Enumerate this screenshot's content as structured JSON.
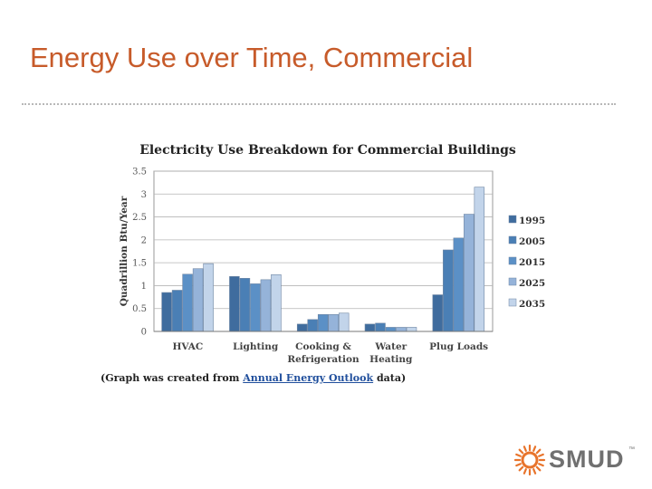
{
  "slide": {
    "title": "Energy Use over Time, Commercial"
  },
  "caption": {
    "prefix": "(Graph was created from ",
    "link": "Annual Energy Outlook",
    "suffix": " data)"
  },
  "logo": {
    "text": "SMUD",
    "trademark": "™",
    "sun_color": "#e8742c"
  },
  "chart_data": {
    "type": "bar",
    "title": "Electricity Use Breakdown for Commercial Buildings",
    "xlabel": "",
    "ylabel": "Quadrillion Btu/Year",
    "ylim": [
      0,
      3.5
    ],
    "yticks": [
      "0",
      "0.5",
      "1",
      "1.5",
      "2",
      "2.5",
      "3",
      "3.5"
    ],
    "grid": true,
    "legend_position": "right",
    "categories": [
      "HVAC",
      "Lighting",
      "Cooking & Refrigeration",
      "Water Heating",
      "Plug Loads"
    ],
    "category_lines": [
      [
        "HVAC"
      ],
      [
        "Lighting"
      ],
      [
        "Cooking &",
        "Refrigeration"
      ],
      [
        "Water",
        "Heating"
      ],
      [
        "Plug Loads"
      ]
    ],
    "series": [
      {
        "name": "1995",
        "color": "#3f6c9e",
        "values": [
          0.85,
          1.2,
          0.16,
          0.16,
          0.8
        ]
      },
      {
        "name": "2005",
        "color": "#4a7fb5",
        "values": [
          0.9,
          1.16,
          0.26,
          0.18,
          1.78
        ]
      },
      {
        "name": "2015",
        "color": "#5b90c6",
        "values": [
          1.25,
          1.04,
          0.37,
          0.09,
          2.04
        ]
      },
      {
        "name": "2025",
        "color": "#95b3d9",
        "values": [
          1.37,
          1.13,
          0.37,
          0.09,
          2.56
        ]
      },
      {
        "name": "2035",
        "color": "#c2d4ea",
        "values": [
          1.48,
          1.24,
          0.4,
          0.09,
          3.15
        ]
      }
    ]
  }
}
